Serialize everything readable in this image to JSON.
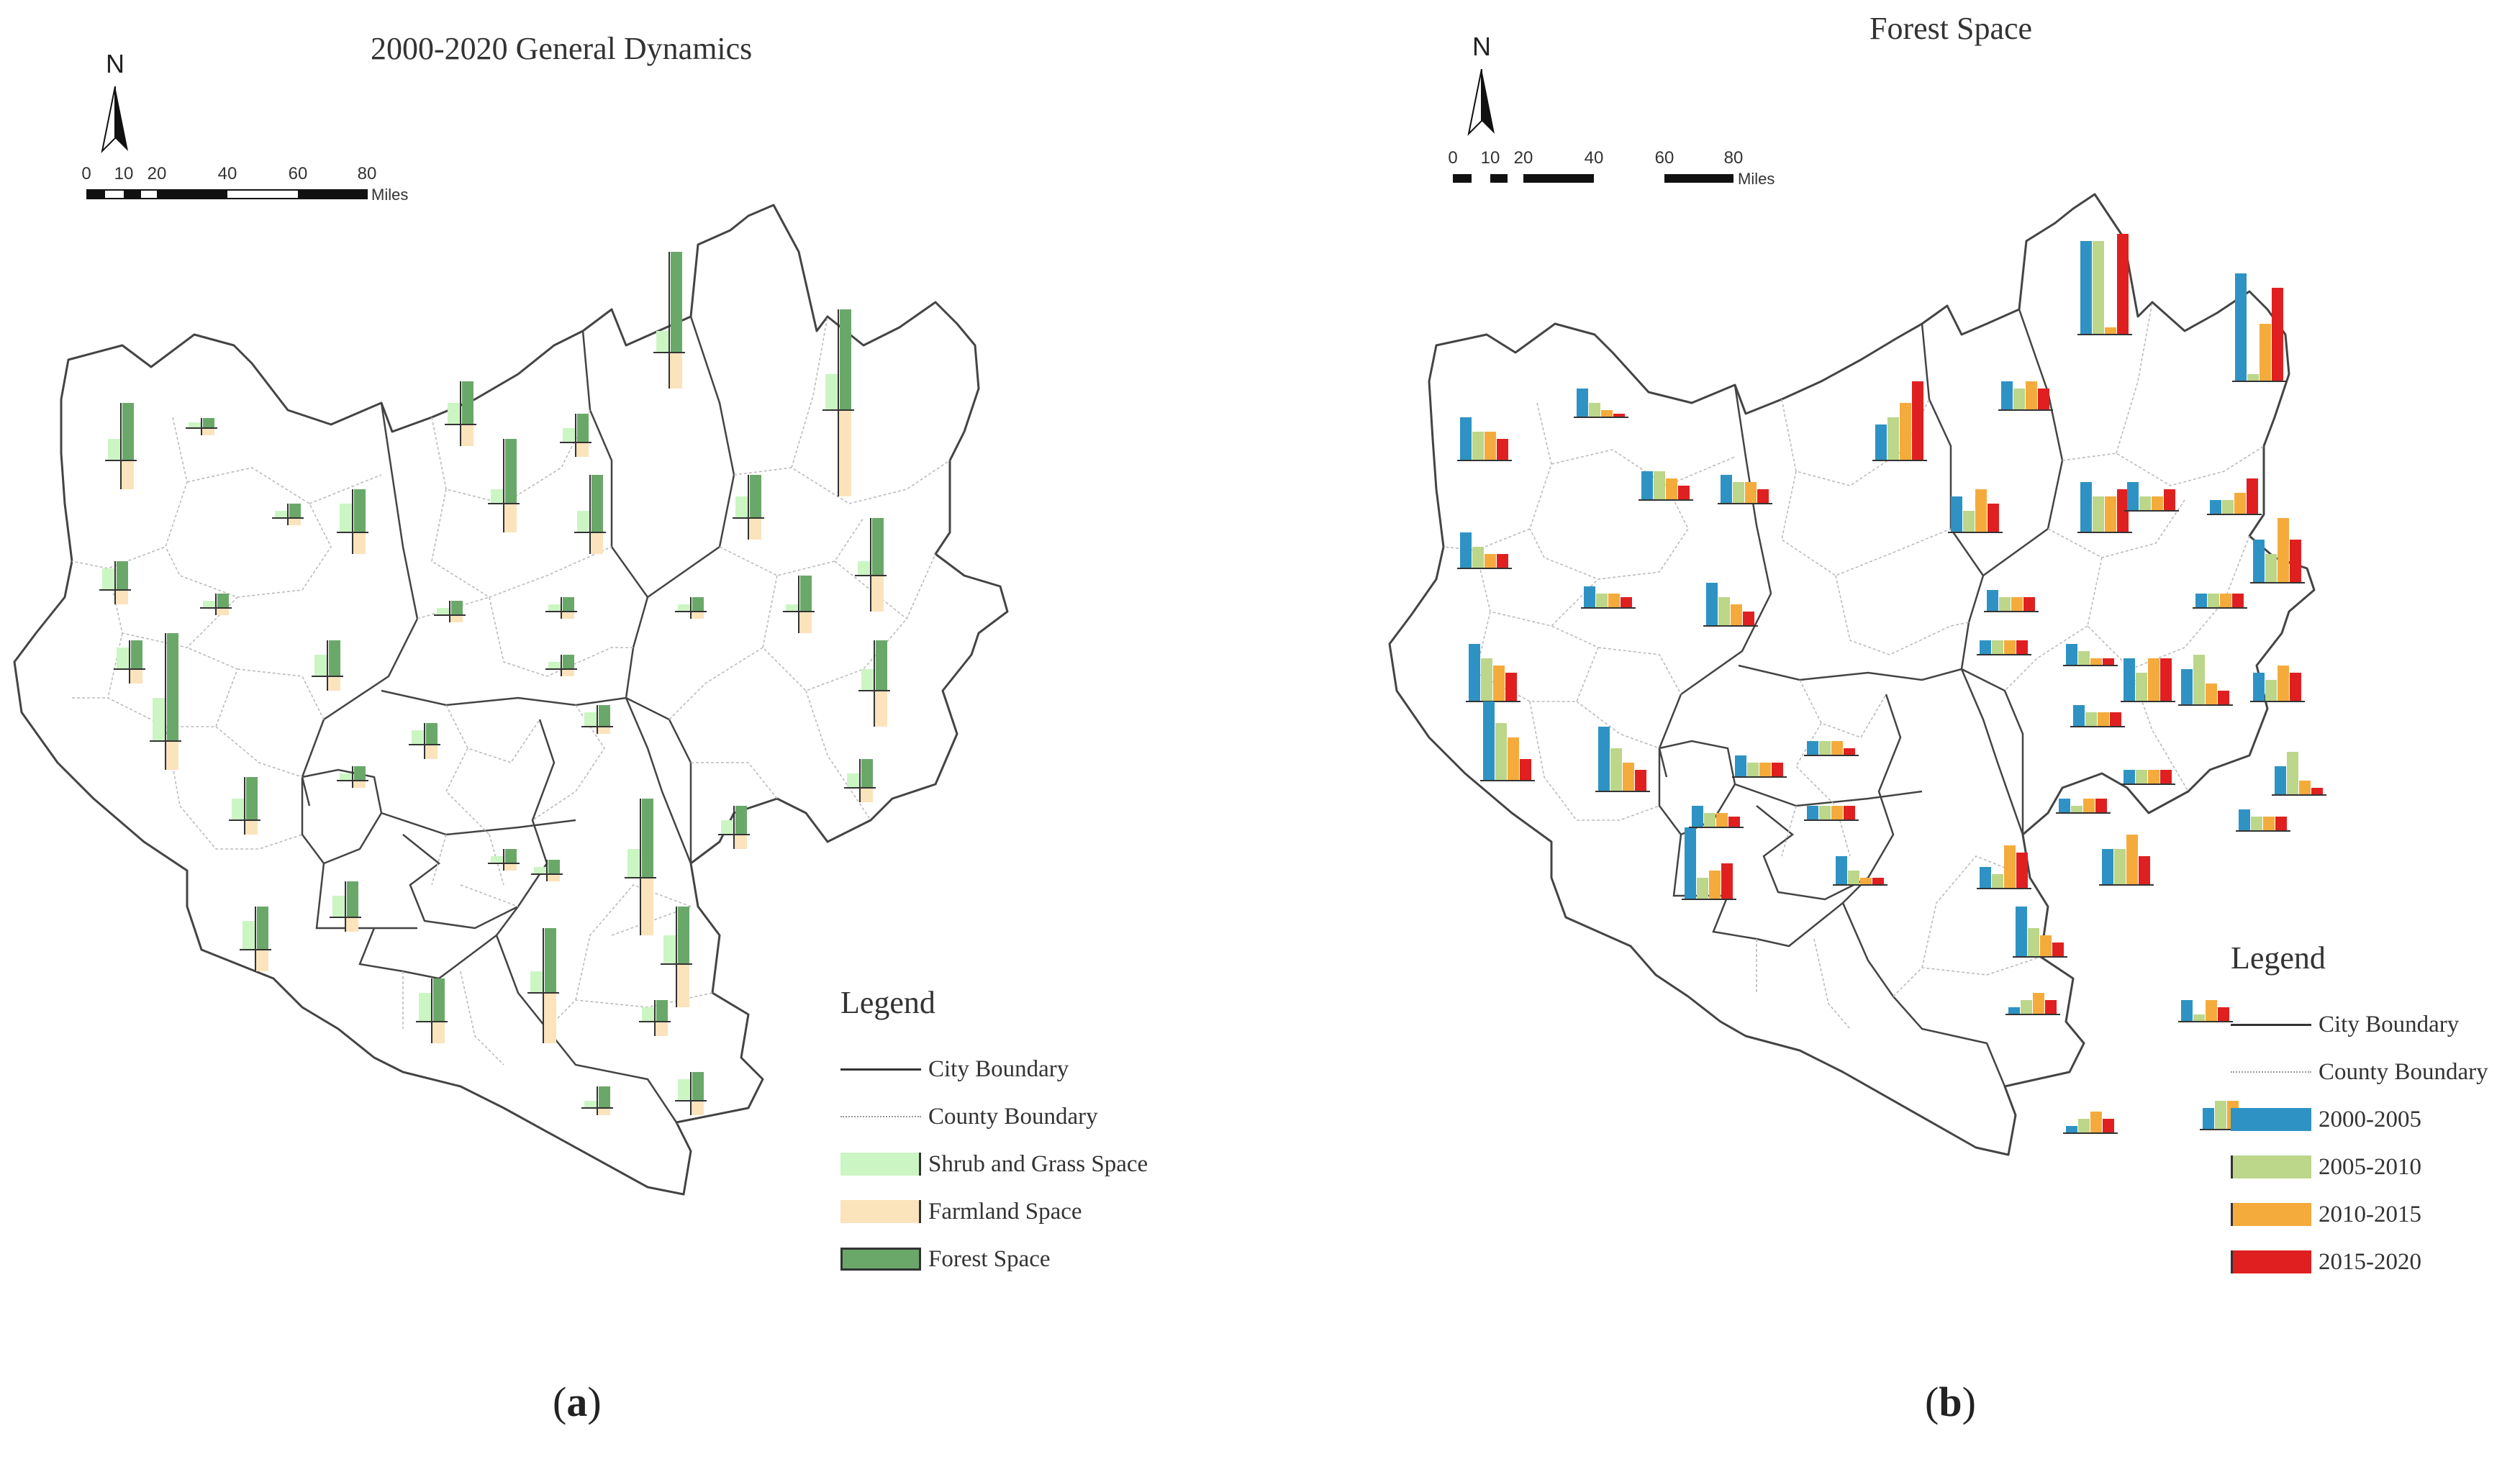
{
  "panel_a": {
    "title": "2000-2020 General Dynamics",
    "label_open": "(",
    "label_letter": "a",
    "label_close": ")",
    "north": "N",
    "scale": {
      "ticks": [
        "0",
        "10",
        "20",
        "40",
        "60",
        "80"
      ],
      "unit": "Miles"
    },
    "legend": {
      "title": "Legend",
      "items": [
        {
          "label": "City Boundary",
          "kind": "line-solid",
          "color": "#333333"
        },
        {
          "label": "County Boundary",
          "kind": "line-dotted",
          "color": "#999999"
        },
        {
          "label": "Shrub and Grass Space",
          "kind": "swatch",
          "color": "#ccf5c4"
        },
        {
          "label": "Farmland Space",
          "kind": "swatch",
          "color": "#fbe3bc"
        },
        {
          "label": "Forest Space",
          "kind": "swatch",
          "color": "#6aa86a"
        }
      ]
    }
  },
  "panel_b": {
    "title": "Forest Space",
    "label_open": "(",
    "label_letter": "b",
    "label_close": ")",
    "north": "N",
    "scale": {
      "ticks": [
        "0",
        "10",
        "20",
        "40",
        "60",
        "80"
      ],
      "unit": "Miles"
    },
    "legend": {
      "title": "Legend",
      "items": [
        {
          "label": "City Boundary",
          "kind": "line-solid",
          "color": "#333333"
        },
        {
          "label": "County Boundary",
          "kind": "line-dotted",
          "color": "#999999"
        },
        {
          "label": "2000-2005",
          "kind": "swatch",
          "color": "#2e93c4"
        },
        {
          "label": "2005-2010",
          "kind": "swatch",
          "color": "#bcd68a"
        },
        {
          "label": "2010-2015",
          "kind": "swatch",
          "color": "#f5ab3c"
        },
        {
          "label": "2015-2020",
          "kind": "swatch",
          "color": "#e02020"
        }
      ]
    }
  },
  "chart_data": [
    {
      "type": "bar",
      "title": "2000-2020 General Dynamics",
      "series": [
        {
          "name": "Shrub and Grass Space"
        },
        {
          "name": "Farmland Space"
        },
        {
          "name": "Forest Space"
        }
      ]
    },
    {
      "type": "bar",
      "title": "Forest Space",
      "series": [
        {
          "name": "2000-2005"
        },
        {
          "name": "2005-2010"
        },
        {
          "name": "2010-2015"
        },
        {
          "name": "2015-2020"
        }
      ]
    }
  ]
}
